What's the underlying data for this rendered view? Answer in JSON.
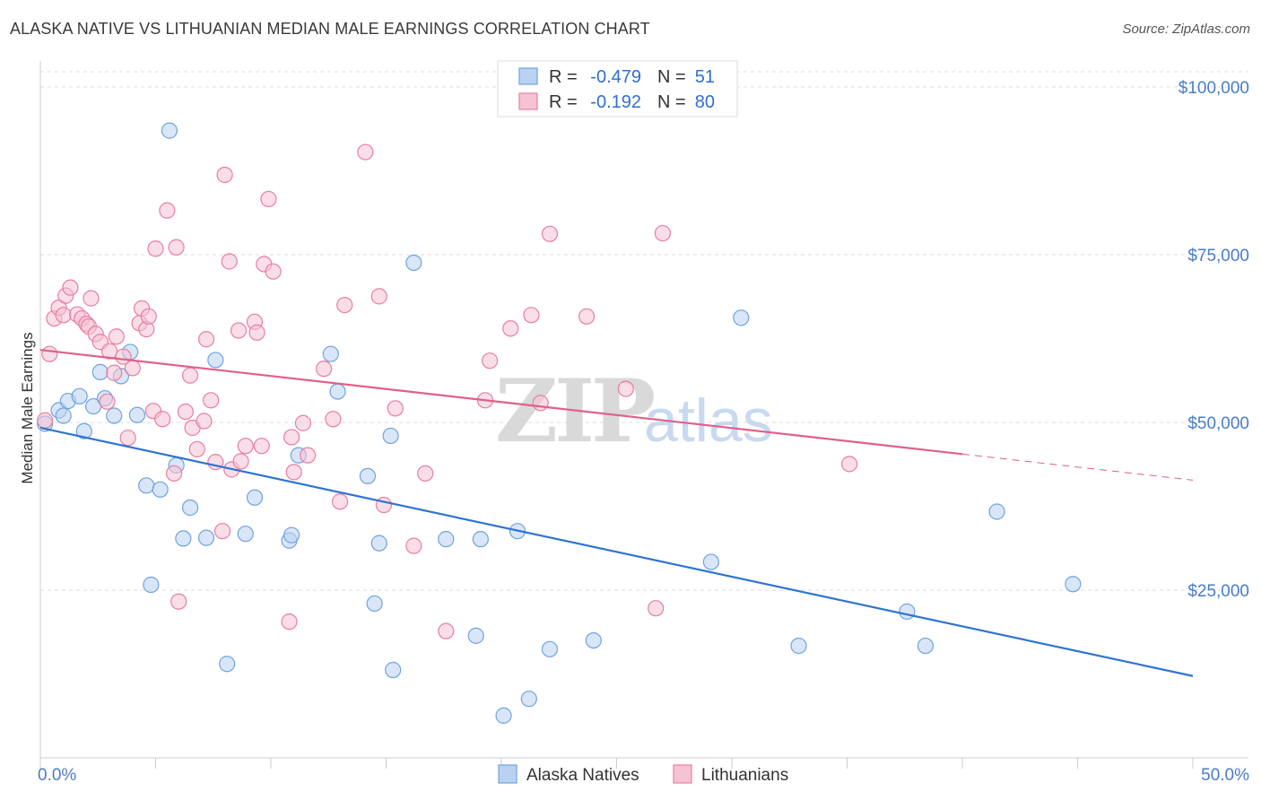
{
  "chart_data": {
    "type": "scatter",
    "title": "ALASKA NATIVE VS LITHUANIAN MEDIAN MALE EARNINGS CORRELATION CHART",
    "source": "Source: ZipAtlas.com",
    "xlabel": "",
    "ylabel": "Median Male Earnings",
    "xlim": [
      0,
      50
    ],
    "ylim": [
      0,
      105000
    ],
    "x_tick_labels": [
      "0.0%",
      "50.0%"
    ],
    "y_ticks": [
      {
        "value": 25000,
        "label": "$25,000"
      },
      {
        "value": 50000,
        "label": "$50,000"
      },
      {
        "value": 75000,
        "label": "$75,000"
      },
      {
        "value": 100000,
        "label": "$100,000"
      }
    ],
    "watermark": {
      "zip": "ZIP",
      "atlas": "atlas"
    },
    "legend": [
      {
        "name": "Alaska Natives",
        "r_label": "R =",
        "r_value": "-0.479",
        "n_label": "N =",
        "n_value": "51",
        "color": "#6fa3e0",
        "fill": "#b9d2f1"
      },
      {
        "name": "Lithuanians",
        "r_label": "R =",
        "r_value": "-0.192",
        "n_label": "N =",
        "n_value": "80",
        "color": "#e87ea1",
        "fill": "#f6c3d4"
      }
    ],
    "series": [
      {
        "name": "Alaska Natives",
        "color": "#6fa3e0",
        "trend": {
          "x0": 0,
          "y0": 49200,
          "x1": 50,
          "y1": 12200,
          "dash_from": null,
          "line_color": "#2f74d0"
        },
        "points": [
          [
            0.2,
            49800
          ],
          [
            0.8,
            51800
          ],
          [
            1.0,
            51000
          ],
          [
            1.2,
            53200
          ],
          [
            1.7,
            53900
          ],
          [
            1.9,
            48700
          ],
          [
            2.3,
            52400
          ],
          [
            2.6,
            57500
          ],
          [
            2.8,
            53600
          ],
          [
            3.2,
            51000
          ],
          [
            3.5,
            56900
          ],
          [
            3.9,
            60500
          ],
          [
            4.2,
            51100
          ],
          [
            4.6,
            40600
          ],
          [
            4.8,
            25800
          ],
          [
            5.2,
            40000
          ],
          [
            5.6,
            93500
          ],
          [
            5.9,
            43600
          ],
          [
            6.2,
            32700
          ],
          [
            6.5,
            37300
          ],
          [
            7.2,
            32800
          ],
          [
            7.6,
            59300
          ],
          [
            8.1,
            14000
          ],
          [
            8.9,
            33400
          ],
          [
            9.3,
            38800
          ],
          [
            10.8,
            32400
          ],
          [
            10.9,
            33200
          ],
          [
            11.2,
            45100
          ],
          [
            12.6,
            60200
          ],
          [
            12.9,
            54600
          ],
          [
            14.2,
            42000
          ],
          [
            14.5,
            23000
          ],
          [
            14.7,
            32000
          ],
          [
            15.2,
            48000
          ],
          [
            15.3,
            13100
          ],
          [
            16.2,
            73800
          ],
          [
            17.6,
            32600
          ],
          [
            18.9,
            18200
          ],
          [
            19.1,
            32600
          ],
          [
            20.1,
            6300
          ],
          [
            20.7,
            33800
          ],
          [
            21.2,
            8800
          ],
          [
            22.1,
            16200
          ],
          [
            24.0,
            17500
          ],
          [
            29.1,
            29200
          ],
          [
            30.4,
            65600
          ],
          [
            32.9,
            16700
          ],
          [
            37.6,
            21800
          ],
          [
            38.4,
            16700
          ],
          [
            41.5,
            36700
          ],
          [
            44.8,
            25900
          ]
        ]
      },
      {
        "name": "Lithuanians",
        "color": "#e87ea1",
        "trend": {
          "x0": 0,
          "y0": 60800,
          "x1": 50,
          "y1": 41400,
          "dash_from": 40,
          "line_color": "#e0608a"
        },
        "points": [
          [
            0.2,
            50300
          ],
          [
            0.4,
            60200
          ],
          [
            0.6,
            65500
          ],
          [
            0.8,
            67100
          ],
          [
            1.0,
            66000
          ],
          [
            1.1,
            68900
          ],
          [
            1.3,
            70100
          ],
          [
            1.6,
            66100
          ],
          [
            1.8,
            65500
          ],
          [
            2.0,
            64700
          ],
          [
            2.1,
            64300
          ],
          [
            2.2,
            68500
          ],
          [
            2.4,
            63200
          ],
          [
            2.6,
            62000
          ],
          [
            2.9,
            53100
          ],
          [
            3.0,
            60600
          ],
          [
            3.2,
            57400
          ],
          [
            3.3,
            62800
          ],
          [
            3.6,
            59800
          ],
          [
            3.8,
            47700
          ],
          [
            4.0,
            58100
          ],
          [
            4.3,
            64800
          ],
          [
            4.4,
            67000
          ],
          [
            4.6,
            63900
          ],
          [
            4.7,
            65800
          ],
          [
            4.9,
            51700
          ],
          [
            5.0,
            75900
          ],
          [
            5.3,
            50500
          ],
          [
            5.5,
            81600
          ],
          [
            5.8,
            42400
          ],
          [
            5.9,
            76100
          ],
          [
            6.0,
            23300
          ],
          [
            6.3,
            51600
          ],
          [
            6.5,
            57000
          ],
          [
            6.6,
            49200
          ],
          [
            6.8,
            46000
          ],
          [
            7.1,
            50200
          ],
          [
            7.2,
            62400
          ],
          [
            7.4,
            53300
          ],
          [
            7.6,
            44100
          ],
          [
            7.9,
            33800
          ],
          [
            8.0,
            86900
          ],
          [
            8.2,
            74000
          ],
          [
            8.3,
            43000
          ],
          [
            8.6,
            63700
          ],
          [
            8.7,
            44200
          ],
          [
            8.9,
            46500
          ],
          [
            9.3,
            65000
          ],
          [
            9.4,
            63400
          ],
          [
            9.6,
            46500
          ],
          [
            9.7,
            73600
          ],
          [
            9.9,
            83300
          ],
          [
            10.1,
            72500
          ],
          [
            10.8,
            20300
          ],
          [
            10.9,
            47800
          ],
          [
            11.0,
            42600
          ],
          [
            11.4,
            49900
          ],
          [
            11.6,
            45100
          ],
          [
            12.3,
            58000
          ],
          [
            12.7,
            50500
          ],
          [
            13.0,
            38200
          ],
          [
            13.2,
            67500
          ],
          [
            14.1,
            90300
          ],
          [
            14.7,
            68800
          ],
          [
            14.9,
            37700
          ],
          [
            15.4,
            52100
          ],
          [
            16.2,
            31600
          ],
          [
            16.7,
            42400
          ],
          [
            17.6,
            18900
          ],
          [
            19.3,
            53300
          ],
          [
            19.5,
            59200
          ],
          [
            20.4,
            64000
          ],
          [
            21.3,
            66000
          ],
          [
            21.7,
            52900
          ],
          [
            22.1,
            78100
          ],
          [
            23.7,
            65800
          ],
          [
            25.4,
            55000
          ],
          [
            26.7,
            22300
          ],
          [
            27.0,
            78200
          ],
          [
            35.1,
            43800
          ]
        ]
      }
    ]
  }
}
